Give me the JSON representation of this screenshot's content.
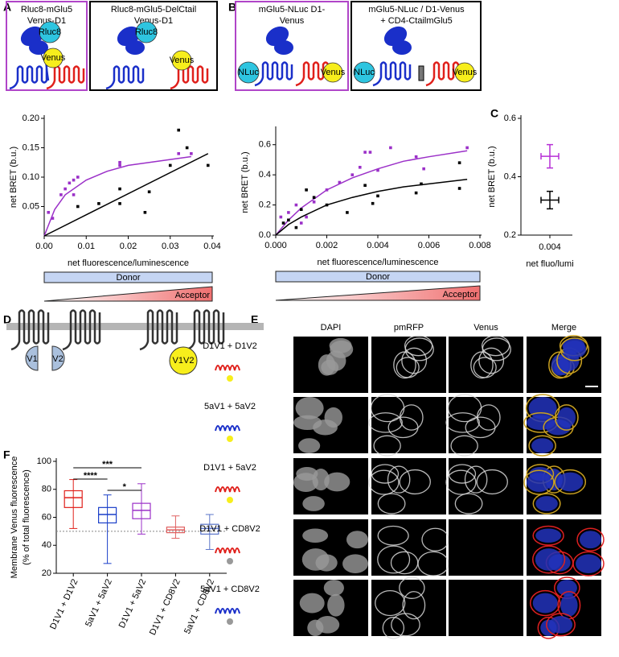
{
  "panel_letters": [
    "A",
    "B",
    "C",
    "D",
    "E",
    "F"
  ],
  "diagrams": {
    "a1": {
      "title": [
        "Rluc8-mGlu5",
        "Venus-D1"
      ],
      "donor": "Rluc8",
      "acceptor": "Venus"
    },
    "a2": {
      "title": [
        "Rluc8-mGlu5-DelCtail",
        "Venus-D1"
      ],
      "donor": "Rluc8",
      "acceptor": "Venus"
    },
    "b1": {
      "title": [
        "mGlu5-NLuc D1-",
        "Venus"
      ],
      "donor": "NLuc",
      "acceptor": "Venus"
    },
    "b2": {
      "title": [
        "mGlu5-NLuc / D1-Venus",
        "+ CD4-CtailmGlu5"
      ],
      "donor": "NLuc",
      "acceptor": "Venus"
    }
  },
  "d": {
    "labels": [
      "V1",
      "V2",
      "V1V2"
    ]
  },
  "e": {
    "columns": [
      "DAPI",
      "pmRFP",
      "Venus",
      "Merge"
    ],
    "rows": [
      "D1V1 + D1V2",
      "5aV1 + 5aV2",
      "D1V1 + 5aV2",
      "D1V1 + CD8V2",
      "5aV1 + CD8V2"
    ]
  },
  "chart_data": [
    {
      "type": "scatter",
      "x_label": "net fluorescence/luminescence",
      "y_label": "net BRET (b.u.)",
      "xlim": [
        0,
        0.04
      ],
      "xticks": [
        {
          "value": 0,
          "label": "0.00"
        },
        0.01,
        0.02,
        0.03,
        0.04
      ],
      "ylim": [
        0,
        0.2
      ],
      "yticks": [
        0.05,
        {
          "value": 0.1,
          "label": "0.10"
        },
        0.15,
        {
          "value": 0.2,
          "label": "0.20"
        }
      ],
      "series": [
        {
          "color": "#9b30c8",
          "x": [
            0.001,
            0.002,
            0.004,
            0.005,
            0.006,
            0.007,
            0.007,
            0.008,
            0.018,
            0.018,
            0.032,
            0.035
          ],
          "values": [
            0.04,
            0.03,
            0.07,
            0.08,
            0.09,
            0.07,
            0.095,
            0.1,
            0.12,
            0.125,
            0.14,
            0.14
          ]
        },
        {
          "color": "#000000",
          "x": [
            0.008,
            0.013,
            0.018,
            0.018,
            0.025,
            0.024,
            0.03,
            0.032,
            0.034,
            0.039
          ],
          "values": [
            0.05,
            0.055,
            0.08,
            0.055,
            0.075,
            0.04,
            0.12,
            0.18,
            0.15,
            0.12
          ]
        }
      ],
      "fits": [
        {
          "color": "#9b30c8",
          "x": [
            0,
            0.0025,
            0.005,
            0.01,
            0.015,
            0.02,
            0.025,
            0.03,
            0.035
          ],
          "values": [
            0,
            0.045,
            0.07,
            0.095,
            0.11,
            0.12,
            0.125,
            0.13,
            0.135
          ]
        },
        {
          "color": "#000000",
          "x": [
            0,
            0.039
          ],
          "values": [
            0,
            0.14
          ]
        }
      ],
      "donor_label": "Donor",
      "acceptor_label": "Acceptor"
    },
    {
      "type": "scatter",
      "x_label": "net fluorescence/luminescence",
      "y_label": "net BRET (b.u.)",
      "xlim": [
        0,
        0.008
      ],
      "xticks": [
        {
          "value": 0,
          "label": "0.000"
        },
        0.002,
        0.004,
        0.006,
        0.008
      ],
      "ylim": [
        0,
        0.7
      ],
      "yticks": [
        {
          "value": 0,
          "label": "0.0"
        },
        0.2,
        0.4,
        0.6
      ],
      "series": [
        {
          "color": "#9b30c8",
          "x": [
            0.0002,
            0.0005,
            0.0008,
            0.001,
            0.0012,
            0.0015,
            0.002,
            0.0025,
            0.003,
            0.0033,
            0.0035,
            0.0037,
            0.004,
            0.0045,
            0.0055,
            0.0058,
            0.0075
          ],
          "values": [
            0.12,
            0.15,
            0.2,
            0.08,
            0.12,
            0.22,
            0.3,
            0.35,
            0.4,
            0.45,
            0.55,
            0.55,
            0.43,
            0.58,
            0.52,
            0.44,
            0.58
          ]
        },
        {
          "color": "#000000",
          "x": [
            0.0003,
            0.0005,
            0.0008,
            0.001,
            0.0012,
            0.0015,
            0.002,
            0.0028,
            0.0035,
            0.0038,
            0.004,
            0.0055,
            0.0057,
            0.0072,
            0.0072
          ],
          "values": [
            0.08,
            0.1,
            0.05,
            0.17,
            0.3,
            0.25,
            0.2,
            0.15,
            0.33,
            0.21,
            0.26,
            0.28,
            0.34,
            0.31,
            0.48
          ]
        }
      ],
      "fits": [
        {
          "color": "#9b30c8",
          "x": [
            0,
            0.0005,
            0.001,
            0.002,
            0.003,
            0.004,
            0.005,
            0.006,
            0.0075
          ],
          "values": [
            0,
            0.1,
            0.18,
            0.3,
            0.38,
            0.44,
            0.49,
            0.52,
            0.56
          ]
        },
        {
          "color": "#000000",
          "x": [
            0,
            0.0005,
            0.001,
            0.002,
            0.003,
            0.004,
            0.005,
            0.006,
            0.0075
          ],
          "values": [
            0,
            0.07,
            0.12,
            0.2,
            0.25,
            0.29,
            0.32,
            0.34,
            0.37
          ]
        }
      ],
      "donor_label": "Donor",
      "acceptor_label": "Acceptor"
    },
    {
      "type": "errorbar",
      "x_label": "net fluo/lumi",
      "y_label": "net BRET (b.u.)",
      "categories": [
        "0.004"
      ],
      "ylim": [
        0.2,
        0.6
      ],
      "yticks": [
        0.2,
        0.4,
        0.6
      ],
      "series": [
        {
          "color": "#b62fd6",
          "values": [
            0.47
          ],
          "errors": [
            0.04
          ]
        },
        {
          "color": "#000000",
          "values": [
            0.32
          ],
          "errors": [
            0.03
          ]
        }
      ]
    },
    {
      "type": "box",
      "y_label": [
        "Membrane Venus fluorescence",
        "(% of total fluorescence)"
      ],
      "categories": [
        "D1V1 + D1V2",
        "5aV1 + 5aV2",
        "D1V1 + 5aV2",
        "D1V1 + CD8V2",
        "5aV1 + CD8V2"
      ],
      "colors": [
        "#e0201b",
        "#1a3fc9",
        "#9b30c8",
        "#e06060",
        "#5a74c9"
      ],
      "ylim": [
        20,
        100
      ],
      "yticks": [
        20,
        40,
        60,
        80,
        100
      ],
      "boxes": [
        {
          "min": 52,
          "q1": 67,
          "median": 74,
          "q3": 79,
          "max": 87
        },
        {
          "min": 27,
          "q1": 56,
          "median": 62,
          "q3": 67,
          "max": 76
        },
        {
          "min": 48,
          "q1": 59,
          "median": 65,
          "q3": 70,
          "max": 84
        },
        {
          "min": 45,
          "q1": 49,
          "median": 51,
          "q3": 53,
          "max": 61
        },
        {
          "min": 37,
          "q1": 48,
          "median": 52,
          "q3": 55,
          "max": 62
        }
      ],
      "reference_line": 50,
      "significance": [
        "***",
        "****",
        "*"
      ]
    }
  ]
}
